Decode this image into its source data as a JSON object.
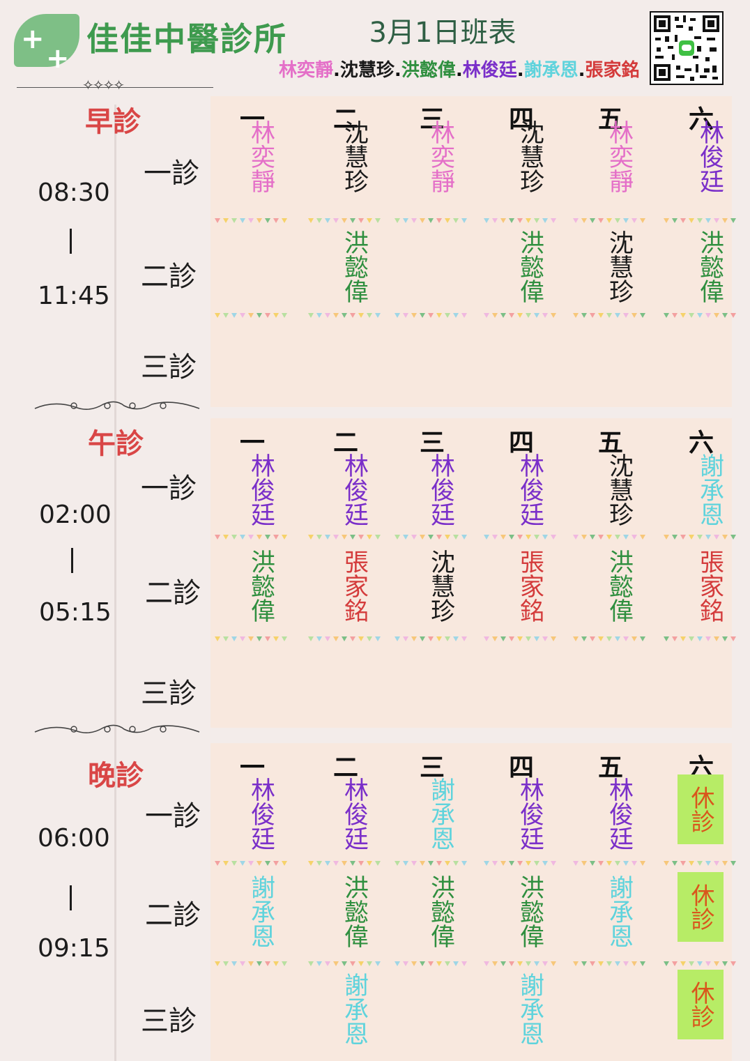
{
  "clinic": {
    "name": "佳佳中醫診所",
    "title": "3月1日班表"
  },
  "legend": [
    {
      "name": "林奕靜",
      "color": "#e46fc8"
    },
    {
      "sep": "."
    },
    {
      "name": "沈慧珍",
      "color": "#1a1a1a"
    },
    {
      "sep": "."
    },
    {
      "name": "洪懿偉",
      "color": "#2f8f3f"
    },
    {
      "sep": "."
    },
    {
      "name": "林俊廷",
      "color": "#7a2fc9"
    },
    {
      "sep": "."
    },
    {
      "name": "謝承恩",
      "color": "#5fd3dc"
    },
    {
      "sep": "."
    },
    {
      "name": "張家銘",
      "color": "#d43b3b"
    }
  ],
  "colors": {
    "林奕靜": "#e46fc8",
    "沈慧珍": "#1a1a1a",
    "洪懿偉": "#2f8f3f",
    "林俊廷": "#7a2fc9",
    "謝承恩": "#5fd3dc",
    "張家銘": "#d43b3b"
  },
  "rest_label": "休診",
  "days": [
    "一",
    "二",
    "三",
    "四",
    "五",
    "六"
  ],
  "rooms": [
    "一診",
    "二診",
    "三診"
  ],
  "sessions": [
    {
      "name": "早診",
      "start": "08:30",
      "end": "11:45",
      "rows": [
        [
          "林奕靜",
          "沈慧珍",
          "林奕靜",
          "沈慧珍",
          "林奕靜",
          "林俊廷"
        ],
        [
          "",
          "洪懿偉",
          "",
          "洪懿偉",
          "沈慧珍",
          "洪懿偉"
        ],
        [
          "",
          "",
          "",
          "",
          "",
          ""
        ]
      ]
    },
    {
      "name": "午診",
      "start": "02:00",
      "end": "05:15",
      "rows": [
        [
          "林俊廷",
          "林俊廷",
          "林俊廷",
          "林俊廷",
          "沈慧珍",
          "謝承恩"
        ],
        [
          "洪懿偉",
          "張家銘",
          "沈慧珍",
          "張家銘",
          "洪懿偉",
          "張家銘"
        ],
        [
          "",
          "",
          "",
          "",
          "",
          ""
        ]
      ]
    },
    {
      "name": "晚診",
      "start": "06:00",
      "end": "09:15",
      "rows": [
        [
          "林俊廷",
          "林俊廷",
          "謝承恩",
          "林俊廷",
          "林俊廷",
          "休診"
        ],
        [
          "謝承恩",
          "洪懿偉",
          "洪懿偉",
          "洪懿偉",
          "謝承恩",
          "休診"
        ],
        [
          "",
          "謝承恩",
          "",
          "謝承恩",
          "",
          "休診"
        ]
      ]
    }
  ],
  "icons": {
    "logo": "leaf-plus-logo-icon",
    "qr": "qr-code-icon",
    "divider": "wavy-divider-icon",
    "stars": "stars-icon"
  }
}
